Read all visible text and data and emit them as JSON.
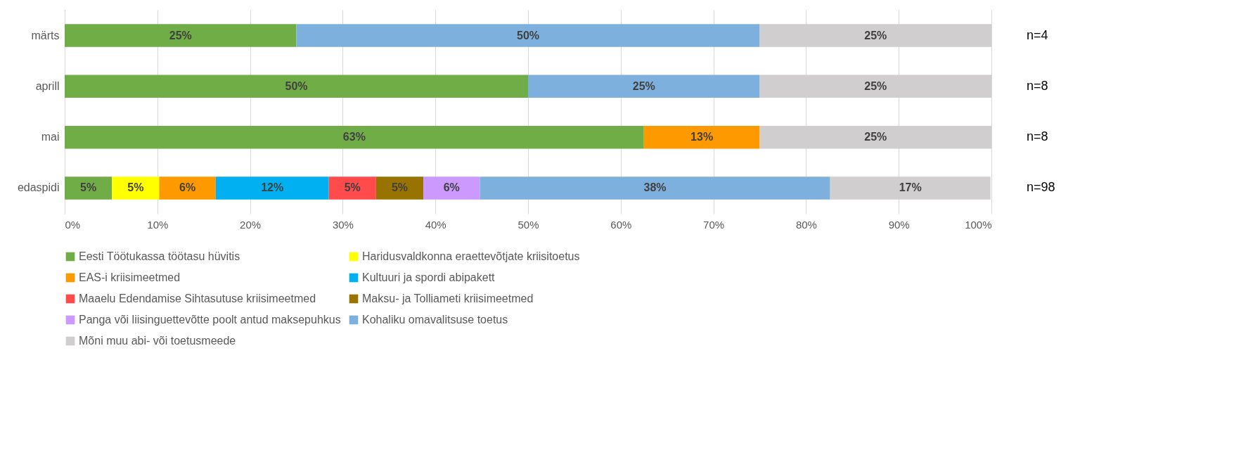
{
  "chart_data": {
    "type": "bar",
    "orientation": "horizontal",
    "stacked": true,
    "categories": [
      "märts",
      "aprill",
      "mai",
      "edaspidi"
    ],
    "series": [
      {
        "name": "Eesti Töötukassa töötasu hüvitis",
        "color": "#70ad47",
        "values": [
          25,
          50,
          62.5,
          5.1
        ],
        "value_labels": [
          "25%",
          "50%",
          "63%",
          "5%"
        ]
      },
      {
        "name": "Haridusvaldkonna eraettevõtjate kriisitoetus",
        "color": "#ffff00",
        "values": [
          null,
          null,
          null,
          5.1
        ],
        "value_labels": [
          null,
          null,
          null,
          "5%"
        ]
      },
      {
        "name": "EAS-i kriisimeetmed",
        "color": "#ff9900",
        "values": [
          null,
          null,
          12.5,
          6.1
        ],
        "value_labels": [
          null,
          null,
          "13%",
          "6%"
        ]
      },
      {
        "name": "Kultuuri ja spordi abipakett",
        "color": "#00b0f0",
        "values": [
          null,
          null,
          null,
          12.2
        ],
        "value_labels": [
          null,
          null,
          null,
          "12%"
        ]
      },
      {
        "name": "Maaelu Edendamise Sihtasutuse kriisimeetmed",
        "color": "#ff4b4b",
        "values": [
          null,
          null,
          null,
          5.1
        ],
        "value_labels": [
          null,
          null,
          null,
          "5%"
        ]
      },
      {
        "name": "Maksu- ja Tolliameti kriisimeetmed",
        "color": "#997300",
        "values": [
          null,
          null,
          null,
          5.1
        ],
        "value_labels": [
          null,
          null,
          null,
          "5%"
        ]
      },
      {
        "name": "Panga või liisinguettevõtte poolt antud maksepuhkus",
        "color": "#cc99ff",
        "values": [
          null,
          null,
          null,
          6.1
        ],
        "value_labels": [
          null,
          null,
          null,
          "6%"
        ]
      },
      {
        "name": "Kohaliku omavalitsuse toetus",
        "color": "#7eb0de",
        "values": [
          50,
          25,
          null,
          37.8
        ],
        "value_labels": [
          "50%",
          "25%",
          null,
          "38%"
        ]
      },
      {
        "name": "Mõni muu abi- või toetusmeede",
        "color": "#d0cece",
        "values": [
          25,
          25,
          25,
          17.3
        ],
        "value_labels": [
          "25%",
          "25%",
          "25%",
          "17%"
        ]
      }
    ],
    "xlim": [
      0,
      100
    ],
    "xticks": [
      {
        "value": 0,
        "label": "0%"
      },
      {
        "value": 10,
        "label": "10%"
      },
      {
        "value": 20,
        "label": "20%"
      },
      {
        "value": 30,
        "label": "30%"
      },
      {
        "value": 40,
        "label": "40%"
      },
      {
        "value": 50,
        "label": "50%"
      },
      {
        "value": 60,
        "label": "60%"
      },
      {
        "value": 70,
        "label": "70%"
      },
      {
        "value": 80,
        "label": "80%"
      },
      {
        "value": 90,
        "label": "90%"
      },
      {
        "value": 100,
        "label": "100%"
      }
    ],
    "grid": "x",
    "legend": "bottom",
    "annotations": [
      "n=4",
      "n=8",
      "n=8",
      "n=98"
    ]
  }
}
